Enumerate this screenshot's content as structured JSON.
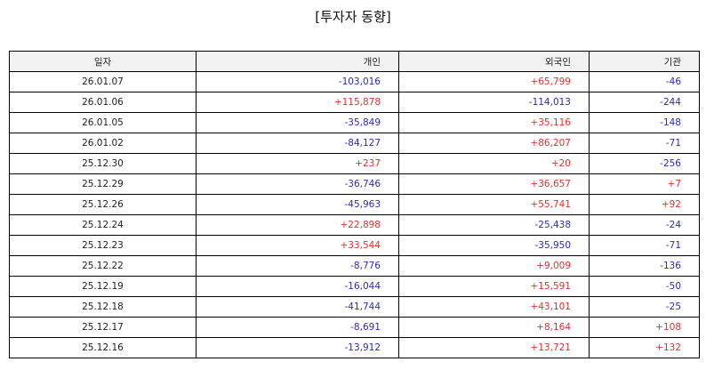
{
  "title": "[투자자 동향]",
  "colors": {
    "positive": "#e03131",
    "negative": "#2b2bb8",
    "header_bg": "#f2f2f2"
  },
  "table": {
    "headers": [
      "일자",
      "개인",
      "외국인",
      "기관"
    ],
    "rows": [
      [
        "26.01.07",
        "-103,016",
        "+65,799",
        "-46"
      ],
      [
        "26.01.06",
        "+115,878",
        "-114,013",
        "-244"
      ],
      [
        "26.01.05",
        "-35,849",
        "+35,116",
        "-148"
      ],
      [
        "26.01.02",
        "-84,127",
        "+86,207",
        "-71"
      ],
      [
        "25.12.30",
        "+237",
        "+20",
        "-256"
      ],
      [
        "25.12.29",
        "-36,746",
        "+36,657",
        "+7"
      ],
      [
        "25.12.26",
        "-45,963",
        "+55,741",
        "+92"
      ],
      [
        "25.12.24",
        "+22,898",
        "-25,438",
        "-24"
      ],
      [
        "25.12.23",
        "+33,544",
        "-35,950",
        "-71"
      ],
      [
        "25.12.22",
        "-8,776",
        "+9,009",
        "-136"
      ],
      [
        "25.12.19",
        "-16,044",
        "+15,591",
        "-50"
      ],
      [
        "25.12.18",
        "-41,744",
        "+43,101",
        "-25"
      ],
      [
        "25.12.17",
        "-8,691",
        "+8,164",
        "+108"
      ],
      [
        "25.12.16",
        "-13,912",
        "+13,721",
        "+132"
      ]
    ]
  }
}
